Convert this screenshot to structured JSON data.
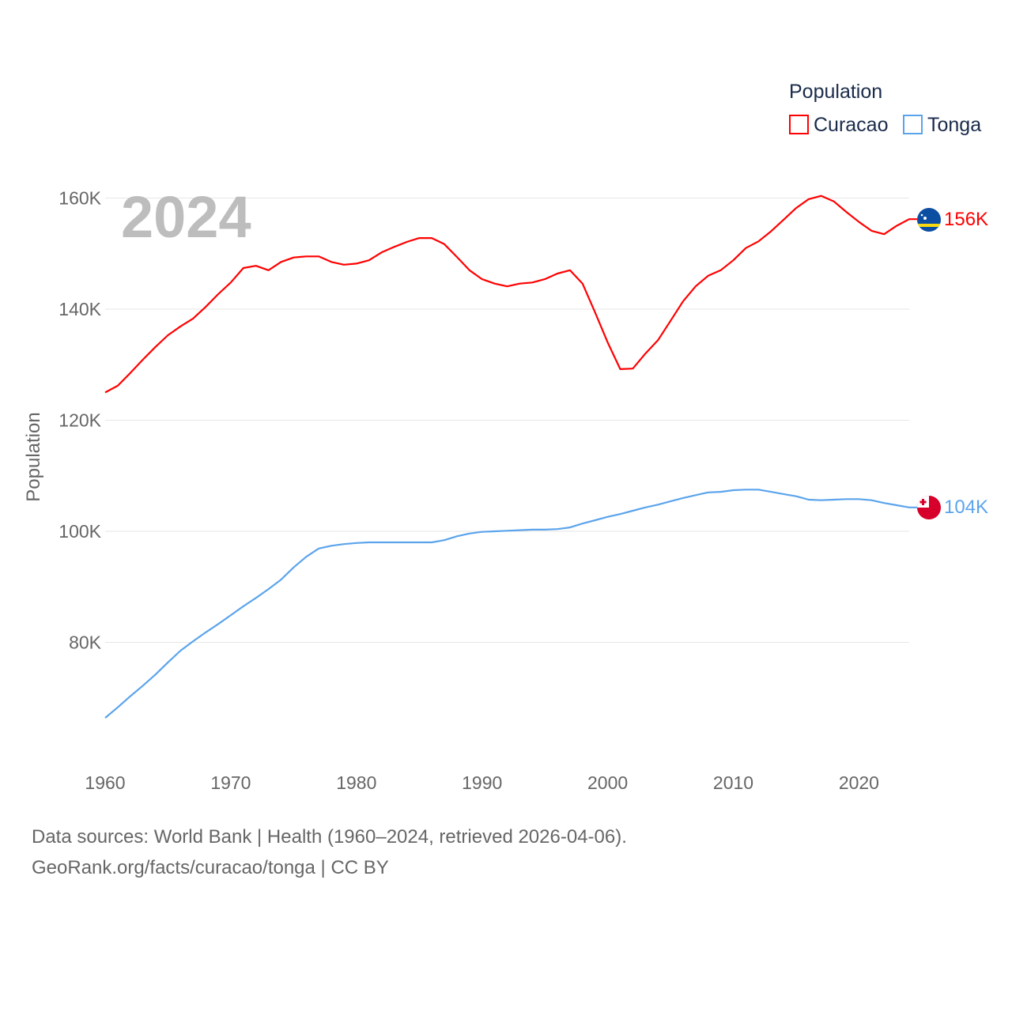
{
  "chart_data": {
    "type": "line",
    "title": "Population",
    "ylabel": "Population",
    "xlabel": "",
    "year_label": "2024",
    "xlim": [
      1960,
      2024
    ],
    "ylim": [
      60,
      165
    ],
    "x_ticks": [
      1960,
      1970,
      1980,
      1990,
      2000,
      2010,
      2020
    ],
    "y_ticks": [
      {
        "v": 80,
        "label": "80K"
      },
      {
        "v": 100,
        "label": "100K"
      },
      {
        "v": 120,
        "label": "120K"
      },
      {
        "v": 140,
        "label": "140K"
      },
      {
        "v": 160,
        "label": "160K"
      }
    ],
    "grid": true,
    "legend_title": "Population",
    "legend_position": "top-right",
    "unit": "thousands",
    "series": [
      {
        "name": "Curacao",
        "color": "#ff0000",
        "end_label": "156K",
        "flag": "curacao-flag",
        "values": [
          125.0,
          126.2,
          128.5,
          130.9,
          133.2,
          135.3,
          136.9,
          138.3,
          140.4,
          142.7,
          144.8,
          147.4,
          147.8,
          147.0,
          148.5,
          149.3,
          149.5,
          149.5,
          148.5,
          148.0,
          148.2,
          148.8,
          150.2,
          151.2,
          152.1,
          152.8,
          152.8,
          151.7,
          149.4,
          147.0,
          145.4,
          144.6,
          144.1,
          144.6,
          144.8,
          145.4,
          146.4,
          147.0,
          144.6,
          139.4,
          134.0,
          129.2,
          129.3,
          132.0,
          134.4,
          137.9,
          141.4,
          144.1,
          146.0,
          147.0,
          148.8,
          151.0,
          152.2,
          154.0,
          156.1,
          158.2,
          159.8,
          160.4,
          159.4,
          157.5,
          155.7,
          154.1,
          153.5,
          155.0,
          156.2
        ]
      },
      {
        "name": "Tonga",
        "color": "#5ba4ec",
        "end_label": "104K",
        "flag": "tonga-flag",
        "values": [
          66.4,
          68.3,
          70.3,
          72.2,
          74.2,
          76.4,
          78.5,
          80.2,
          81.8,
          83.3,
          84.9,
          86.5,
          88.0,
          89.6,
          91.3,
          93.5,
          95.4,
          96.9,
          97.4,
          97.7,
          97.9,
          98.0,
          98.0,
          98.0,
          98.0,
          98.0,
          98.0,
          98.4,
          99.1,
          99.6,
          99.9,
          100.0,
          100.1,
          100.2,
          100.3,
          100.3,
          100.4,
          100.7,
          101.4,
          102.0,
          102.6,
          103.1,
          103.7,
          104.3,
          104.8,
          105.4,
          106.0,
          106.5,
          107.0,
          107.1,
          107.4,
          107.5,
          107.5,
          107.1,
          106.7,
          106.3,
          105.7,
          105.6,
          105.7,
          105.8,
          105.8,
          105.6,
          105.1,
          104.7,
          104.3
        ]
      }
    ]
  },
  "footer": {
    "line1": "Data sources: World Bank | Health (1960–2024, retrieved 2026-04-06).",
    "line2": "GeoRank.org/facts/curacao/tonga | CC BY"
  }
}
